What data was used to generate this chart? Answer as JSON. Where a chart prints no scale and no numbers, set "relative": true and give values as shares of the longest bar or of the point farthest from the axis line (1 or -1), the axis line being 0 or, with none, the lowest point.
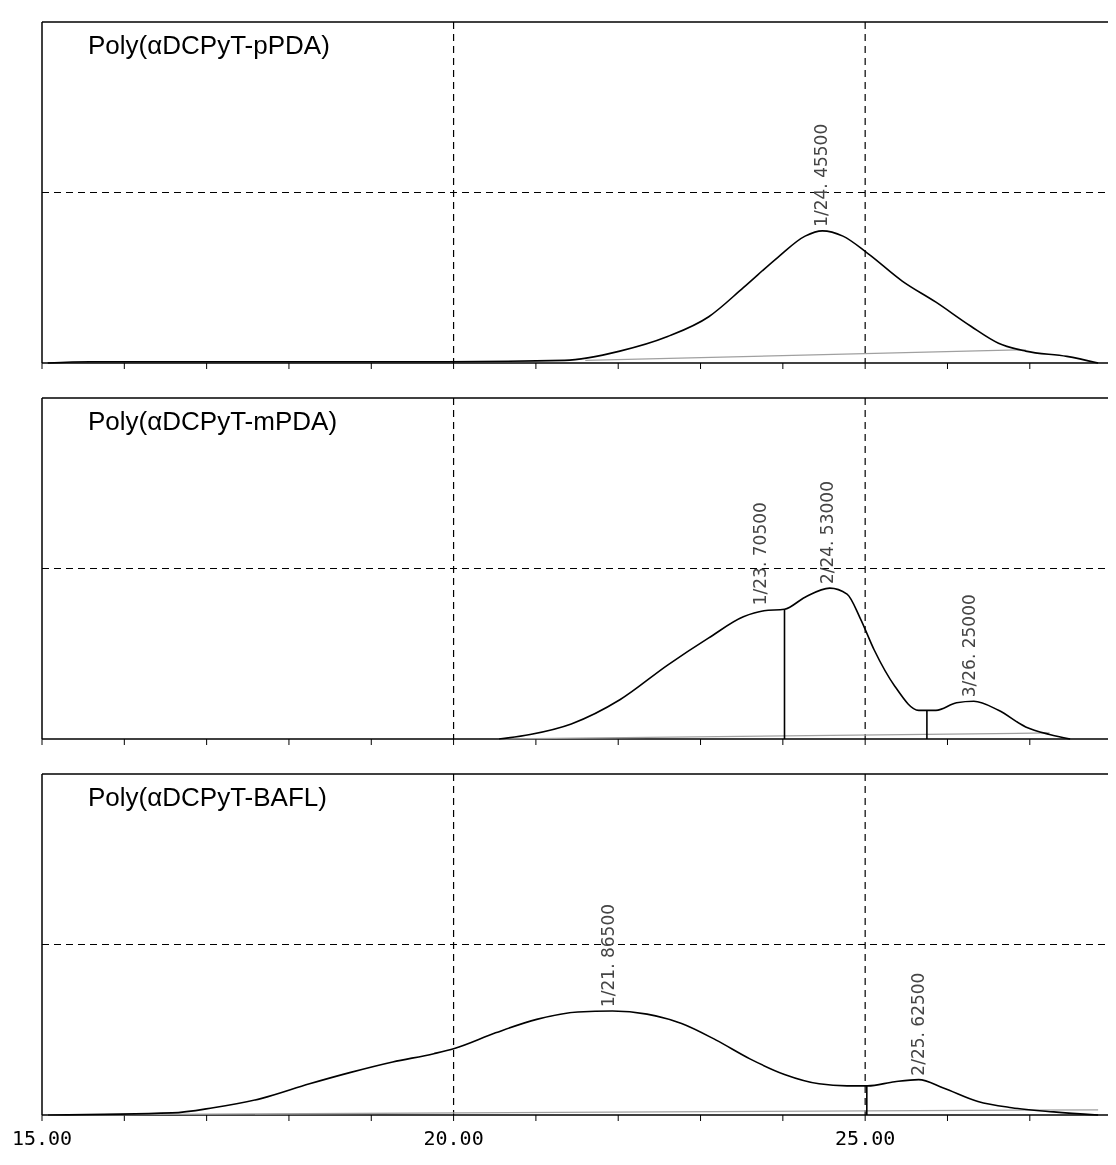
{
  "chart_data": [
    {
      "type": "line",
      "title": "Poly(αDCPyT-pPDA)",
      "relative": true,
      "xlim": [
        15,
        27.95
      ],
      "xticks": [
        {
          "value": 15,
          "label": null
        },
        {
          "value": 16,
          "label": null
        },
        {
          "value": 17,
          "label": null
        },
        {
          "value": 18,
          "label": null
        },
        {
          "value": 19,
          "label": null
        },
        {
          "value": 20,
          "label": null
        },
        {
          "value": 21,
          "label": null
        },
        {
          "value": 22,
          "label": null
        },
        {
          "value": 23,
          "label": null
        },
        {
          "value": 24,
          "label": null
        },
        {
          "value": 25,
          "label": null
        },
        {
          "value": 26,
          "label": null
        },
        {
          "value": 27,
          "label": null
        }
      ],
      "tick_labels": false,
      "series": [
        {
          "type": "line",
          "color": "#a0a0a0",
          "x": [
            21.6,
            26.95
          ],
          "values": [
            0.02,
            0.1
          ]
        },
        {
          "type": "line",
          "color": "#000000",
          "x": [
            15.07,
            15.58,
            19.92,
            21.35,
            22.02,
            22.6,
            23.1,
            23.52,
            23.94,
            24.27,
            24.48,
            24.73,
            25.03,
            25.45,
            25.86,
            26.28,
            26.62,
            26.95,
            27.45,
            27.83
          ],
          "values": [
            0,
            0.01,
            0.01,
            0.02,
            0.09,
            0.2,
            0.35,
            0.57,
            0.8,
            0.96,
            1,
            0.96,
            0.83,
            0.62,
            0.46,
            0.28,
            0.15,
            0.09,
            0.05,
            0
          ]
        }
      ],
      "ref_lines": [
        {
          "axis": "x",
          "value": 20,
          "line_style": "dashed",
          "color": "#000000"
        },
        {
          "axis": "x",
          "value": 25,
          "line_style": "dashed",
          "color": "#000000"
        },
        {
          "axis": "y",
          "value": 1.29,
          "line_style": "dashed",
          "color": "#000000"
        }
      ],
      "annotations": [
        {
          "text": "1/24. 45500",
          "x": 24.455,
          "y": 1
        }
      ]
    },
    {
      "type": "line",
      "title": "Poly(αDCPyT-mPDA)",
      "relative": true,
      "xlim": [
        15,
        27.95
      ],
      "xticks": [
        {
          "value": 15,
          "label": null
        },
        {
          "value": 16,
          "label": null
        },
        {
          "value": 17,
          "label": null
        },
        {
          "value": 18,
          "label": null
        },
        {
          "value": 19,
          "label": null
        },
        {
          "value": 20,
          "label": null
        },
        {
          "value": 21,
          "label": null
        },
        {
          "value": 22,
          "label": null
        },
        {
          "value": 23,
          "label": null
        },
        {
          "value": 24,
          "label": null
        },
        {
          "value": 25,
          "label": null
        },
        {
          "value": 26,
          "label": null
        },
        {
          "value": 27,
          "label": null
        }
      ],
      "tick_labels": false,
      "series": [
        {
          "type": "line",
          "color": "#a0a0a0",
          "x": [
            20.55,
            27.24
          ],
          "values": [
            0,
            0.04
          ]
        },
        {
          "type": "line",
          "color": "#000000",
          "x": [
            24.02,
            24.02
          ],
          "values": [
            0,
            0.86
          ]
        },
        {
          "type": "line",
          "color": "#000000",
          "x": [
            25.75,
            25.75
          ],
          "values": [
            0,
            0.19
          ]
        },
        {
          "type": "line",
          "color": "#000000",
          "x": [
            20.55,
            20.93,
            21.43,
            22.02,
            22.6,
            23.1,
            23.52,
            23.77,
            24.02,
            24.27,
            24.57,
            24.78,
            24.94,
            25.11,
            25.36,
            25.65,
            25.86,
            26.11,
            26.32,
            26.62,
            26.95,
            27.24,
            27.49
          ],
          "values": [
            0,
            0.03,
            0.1,
            0.26,
            0.49,
            0.67,
            0.81,
            0.85,
            0.86,
            0.94,
            1,
            0.96,
            0.8,
            0.59,
            0.35,
            0.19,
            0.19,
            0.24,
            0.25,
            0.19,
            0.08,
            0.03,
            0
          ]
        }
      ],
      "ref_lines": [
        {
          "axis": "x",
          "value": 20,
          "line_style": "dashed",
          "color": "#000000"
        },
        {
          "axis": "x",
          "value": 25,
          "line_style": "dashed",
          "color": "#000000"
        },
        {
          "axis": "y",
          "value": 1.13,
          "line_style": "dashed",
          "color": "#000000"
        }
      ],
      "annotations": [
        {
          "text": "1/23. 70500",
          "x": 23.705,
          "y": 0.86
        },
        {
          "text": "2/24. 53000",
          "x": 24.53,
          "y": 1
        },
        {
          "text": "3/26. 25000",
          "x": 26.25,
          "y": 0.25
        }
      ]
    },
    {
      "type": "line",
      "title": "Poly(αDCPyT-BAFL)",
      "relative": true,
      "xlim": [
        15,
        27.95
      ],
      "xticks": [
        {
          "value": 15,
          "label": "15.00"
        },
        {
          "value": 16,
          "label": null
        },
        {
          "value": 17,
          "label": null
        },
        {
          "value": 18,
          "label": null
        },
        {
          "value": 19,
          "label": null
        },
        {
          "value": 20,
          "label": "20.00"
        },
        {
          "value": 21,
          "label": null
        },
        {
          "value": 22,
          "label": null
        },
        {
          "value": 23,
          "label": null
        },
        {
          "value": 24,
          "label": null
        },
        {
          "value": 25,
          "label": "25.00"
        },
        {
          "value": 26,
          "label": null
        },
        {
          "value": 27,
          "label": null
        }
      ],
      "tick_labels": "x",
      "series": [
        {
          "type": "line",
          "color": "#a0a0a0",
          "x": [
            15.07,
            27.83
          ],
          "values": [
            0,
            0.05
          ]
        },
        {
          "type": "line",
          "color": "#000000",
          "x": [
            25.02,
            25.02
          ],
          "values": [
            0,
            0.28
          ]
        },
        {
          "type": "line",
          "color": "#000000",
          "x": [
            15.07,
            16.58,
            17.08,
            17.67,
            18.25,
            18.75,
            19.26,
            19.76,
            20.01,
            20.51,
            21.01,
            21.51,
            21.93,
            22.35,
            22.77,
            23.19,
            23.6,
            24.02,
            24.44,
            24.78,
            25.03,
            25.36,
            25.65,
            25.95,
            26.37,
            26.78,
            27.29,
            27.83
          ],
          "values": [
            0,
            0.02,
            0.07,
            0.16,
            0.3,
            0.41,
            0.51,
            0.59,
            0.64,
            0.79,
            0.92,
            0.99,
            1,
            0.97,
            0.88,
            0.72,
            0.54,
            0.39,
            0.3,
            0.28,
            0.28,
            0.32,
            0.34,
            0.26,
            0.13,
            0.07,
            0.03,
            0
          ]
        }
      ],
      "ref_lines": [
        {
          "axis": "x",
          "value": 20,
          "line_style": "dashed",
          "color": "#000000"
        },
        {
          "axis": "x",
          "value": 25,
          "line_style": "dashed",
          "color": "#000000"
        },
        {
          "axis": "y",
          "value": 1.64,
          "line_style": "dashed",
          "color": "#000000"
        }
      ],
      "annotations": [
        {
          "text": "1/21. 86500",
          "x": 21.865,
          "y": 1
        },
        {
          "text": "2/25. 62500",
          "x": 25.625,
          "y": 0.34
        }
      ]
    }
  ]
}
